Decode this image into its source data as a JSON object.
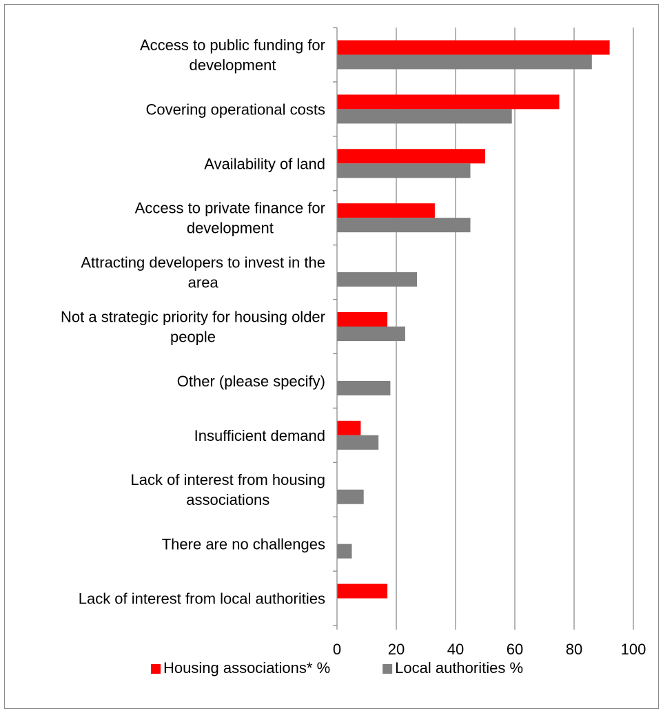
{
  "chart_data": {
    "type": "bar",
    "orientation": "horizontal",
    "title": "",
    "xlabel": "",
    "ylabel": "",
    "xlim": [
      0,
      100
    ],
    "x_ticks": [
      "0",
      "20",
      "40",
      "60",
      "80",
      "100"
    ],
    "grid": "vertical",
    "legend_position": "bottom",
    "categories": [
      [
        "Access to public funding for",
        "development"
      ],
      [
        "Covering operational costs"
      ],
      [
        "Availability of land"
      ],
      [
        "Access to private finance for",
        "development"
      ],
      [
        "Attracting developers to invest in the",
        "area"
      ],
      [
        "Not a strategic priority for housing older",
        "people"
      ],
      [
        "Other (please specify)"
      ],
      [
        "Insufficient demand"
      ],
      [
        "Lack of interest from housing",
        "associations"
      ],
      [
        "There are no challenges"
      ],
      [
        "Lack of interest from local authorities"
      ]
    ],
    "series": [
      {
        "name": "Housing associations* %",
        "color": "#ff0000",
        "values": [
          92,
          75,
          50,
          33,
          null,
          17,
          null,
          8,
          null,
          null,
          17
        ]
      },
      {
        "name": "Local authorities %",
        "color": "#808080",
        "values": [
          86,
          59,
          45,
          45,
          27,
          23,
          18,
          14,
          9,
          5,
          null
        ]
      }
    ]
  }
}
